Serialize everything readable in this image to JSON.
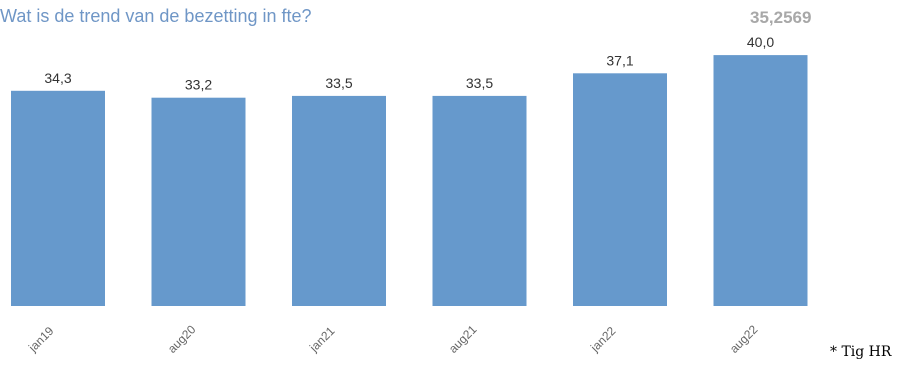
{
  "title": "Wat is de trend van de bezetting in fte?",
  "kpi_value": "35,2569",
  "source_note": "* Tig HR",
  "colors": {
    "bar": "#6699cc",
    "title": "#6f96c6",
    "kpi": "#a8a8a8"
  },
  "chart_data": {
    "type": "bar",
    "title": "Wat is de trend van de bezetting in fte?",
    "categories": [
      "jan19",
      "aug20",
      "jan21",
      "aug21",
      "jan22",
      "aug22"
    ],
    "values": [
      34.3,
      33.2,
      33.5,
      33.5,
      37.1,
      40.0
    ],
    "value_labels": [
      "34,3",
      "33,2",
      "33,5",
      "33,5",
      "37,1",
      "40,0"
    ],
    "xlabel": "",
    "ylabel": "",
    "ylim": [
      0,
      44
    ],
    "grid": false,
    "legend": "none"
  }
}
